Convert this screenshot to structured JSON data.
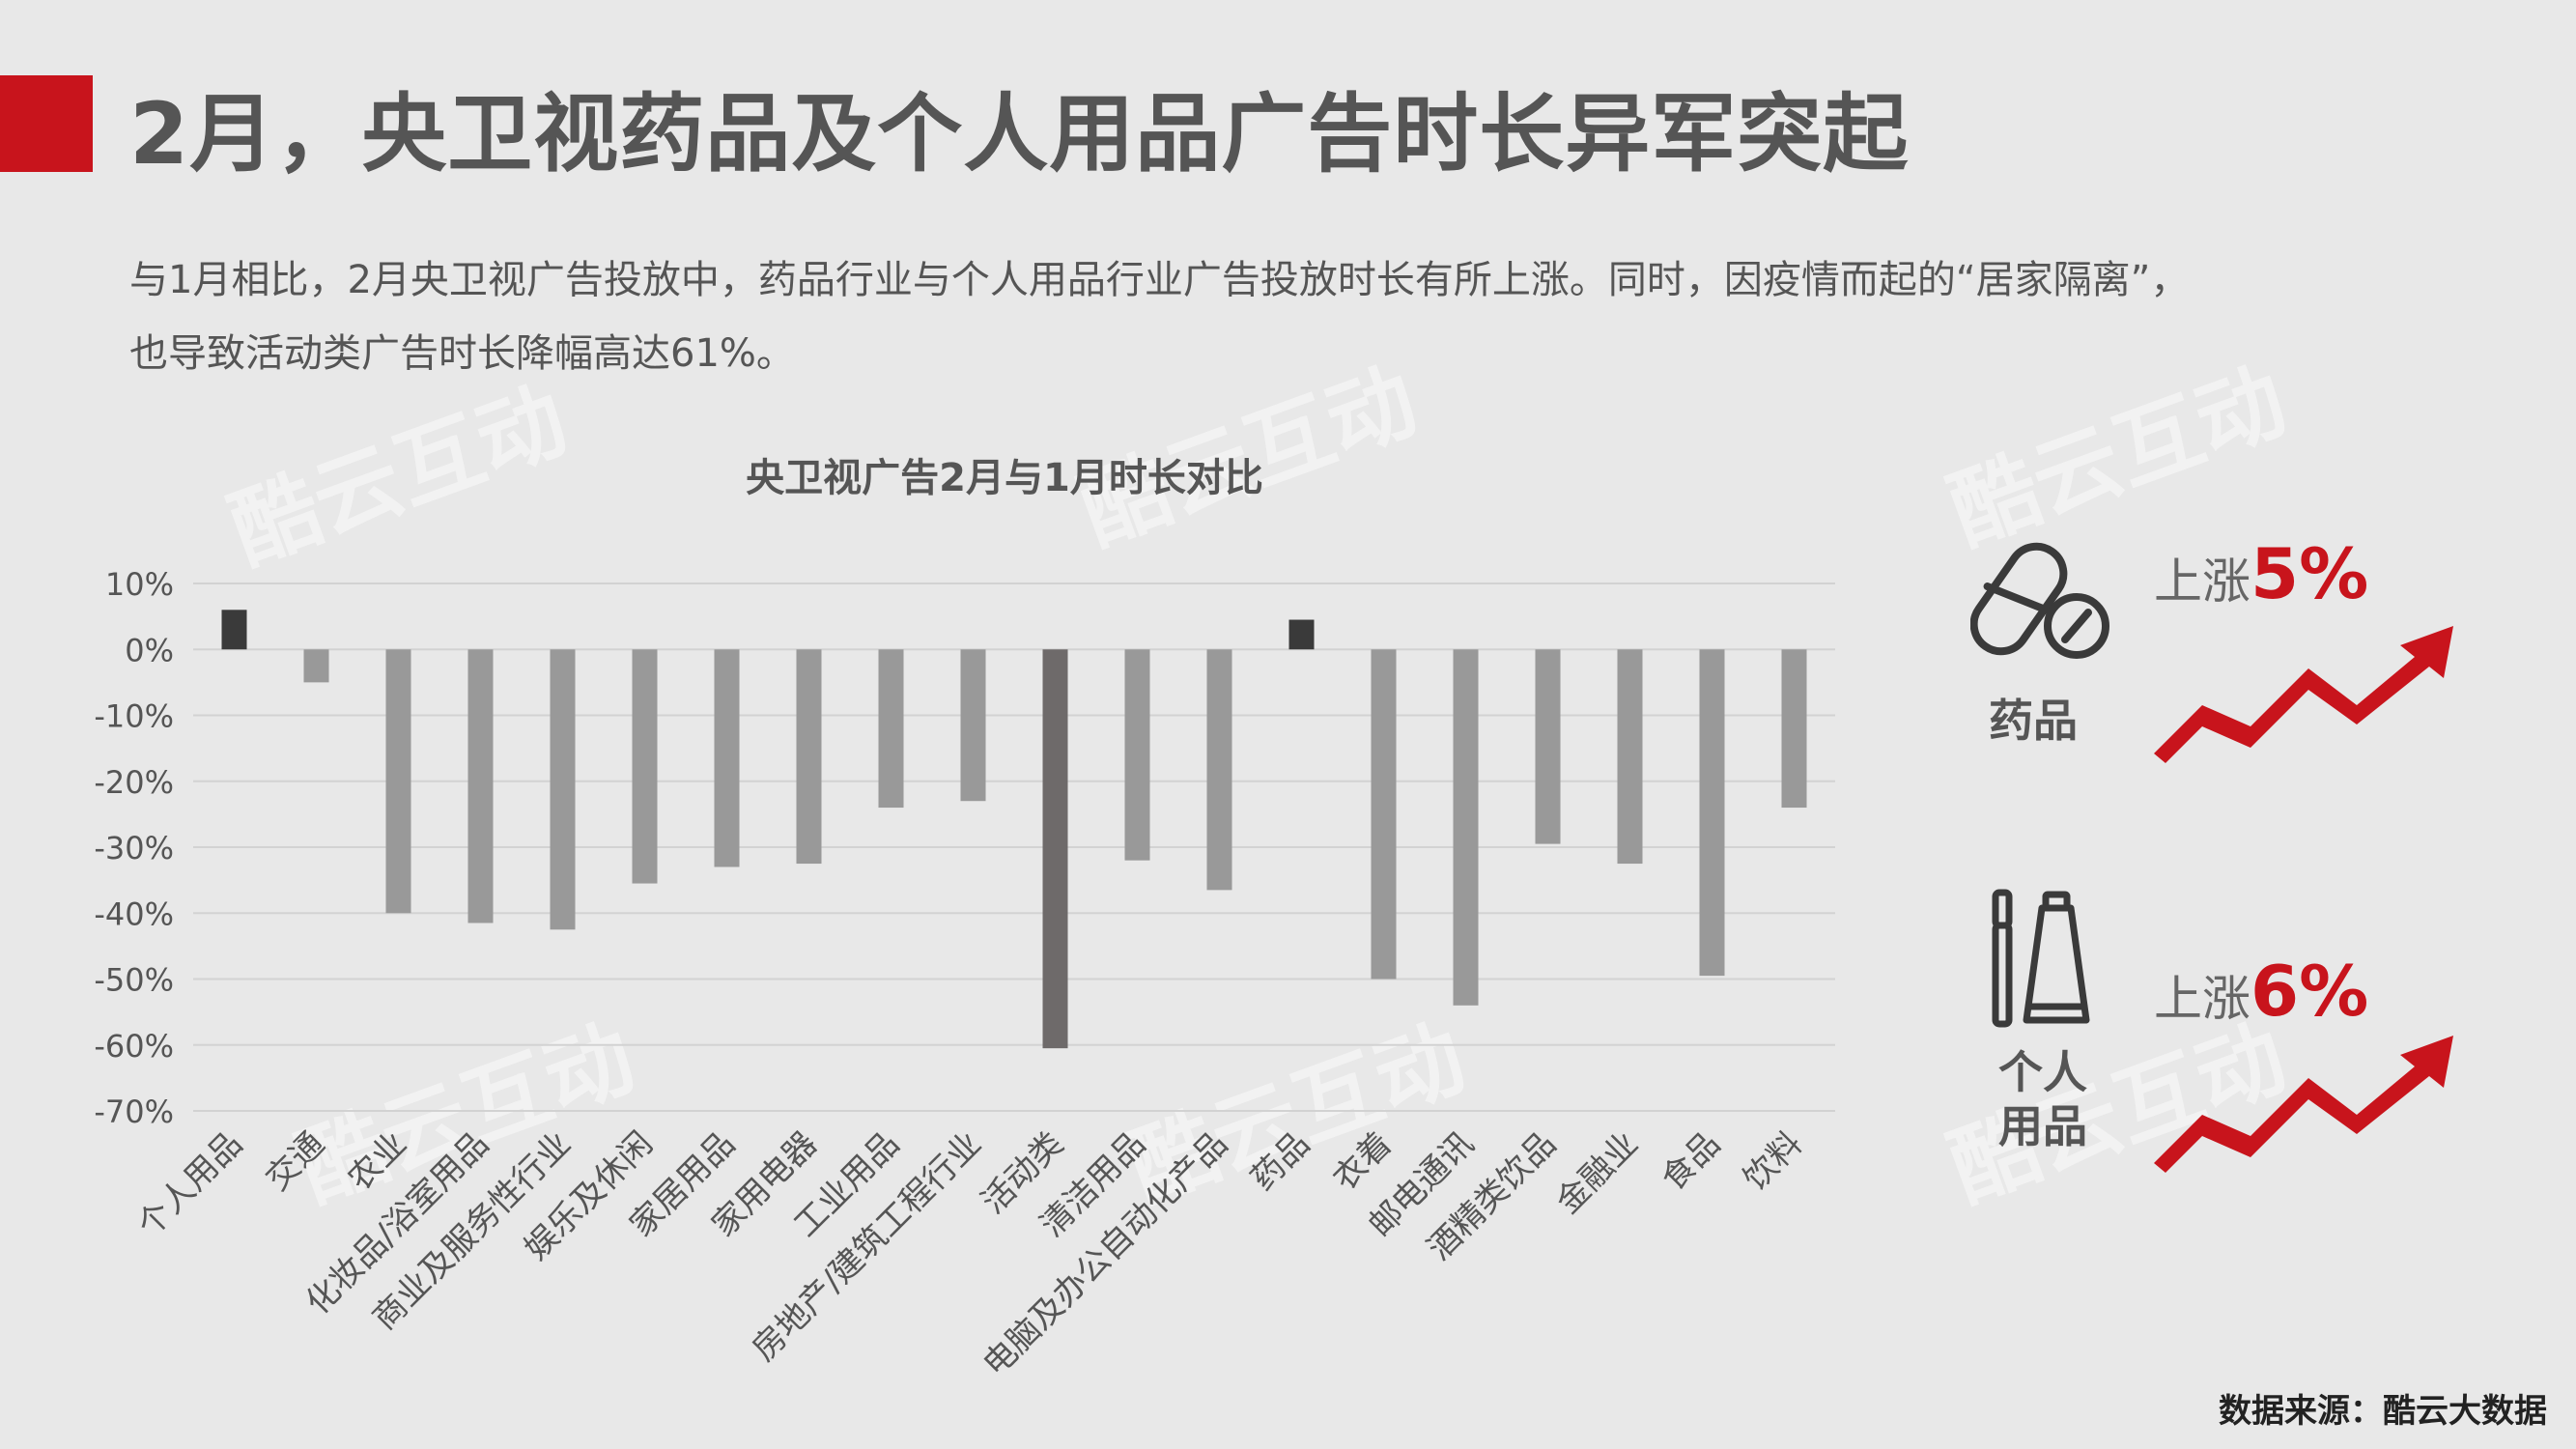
{
  "header": {
    "title": "2月，央卫视药品及个人用品广告时长异军突起",
    "accent_color": "#c8141c"
  },
  "description": {
    "line1": "与1月相比，2月央卫视广告投放中，药品行业与个人用品行业广告投放时长有所上涨。同时，因疫情而起的“居家隔离”，",
    "line2": "也导致活动类广告时长降幅高达61%。"
  },
  "watermark": {
    "text": "酷云互动"
  },
  "chart_data": {
    "type": "bar",
    "title": "央卫视广告2月与1月时长对比",
    "categories": [
      "个人用品",
      "交通",
      "农业",
      "化妆品/浴室用品",
      "商业及服务性行业",
      "娱乐及休闲",
      "家居用品",
      "家用电器",
      "工业用品",
      "房地产/建筑工程行业",
      "活动类",
      "清洁用品",
      "电脑及办公自动化产品",
      "药品",
      "衣着",
      "邮电通讯",
      "酒精类饮品",
      "金融业",
      "食品",
      "饮料"
    ],
    "values": [
      6,
      -5,
      -40,
      -41.5,
      -42.5,
      -35.5,
      -33,
      -32.5,
      -24,
      -23,
      -60.5,
      -32,
      -36.5,
      4.5,
      -50,
      -54,
      -29.5,
      -32.5,
      -49.5,
      -24
    ],
    "highlight": {
      "个人用品": "#3a3a3a",
      "药品": "#3a3a3a",
      "活动类": "#6e6a6a"
    },
    "bar_color": "#999999",
    "ylim": [
      -70,
      10
    ],
    "yticks": [
      "10%",
      "0%",
      "-10%",
      "-20%",
      "-30%",
      "-40%",
      "-50%",
      "-60%",
      "-70%"
    ],
    "grid": true
  },
  "sidebar": {
    "items": [
      {
        "label": "药品",
        "rise_prefix": "上涨",
        "rise_value": "5%",
        "icon": "pill-icon"
      },
      {
        "label": "个人\n用品",
        "rise_prefix": "上涨",
        "rise_value": "6%",
        "icon": "toiletries-icon"
      }
    ],
    "rise_color": "#c8141c"
  },
  "footer": {
    "source": "数据来源：酷云大数据"
  }
}
